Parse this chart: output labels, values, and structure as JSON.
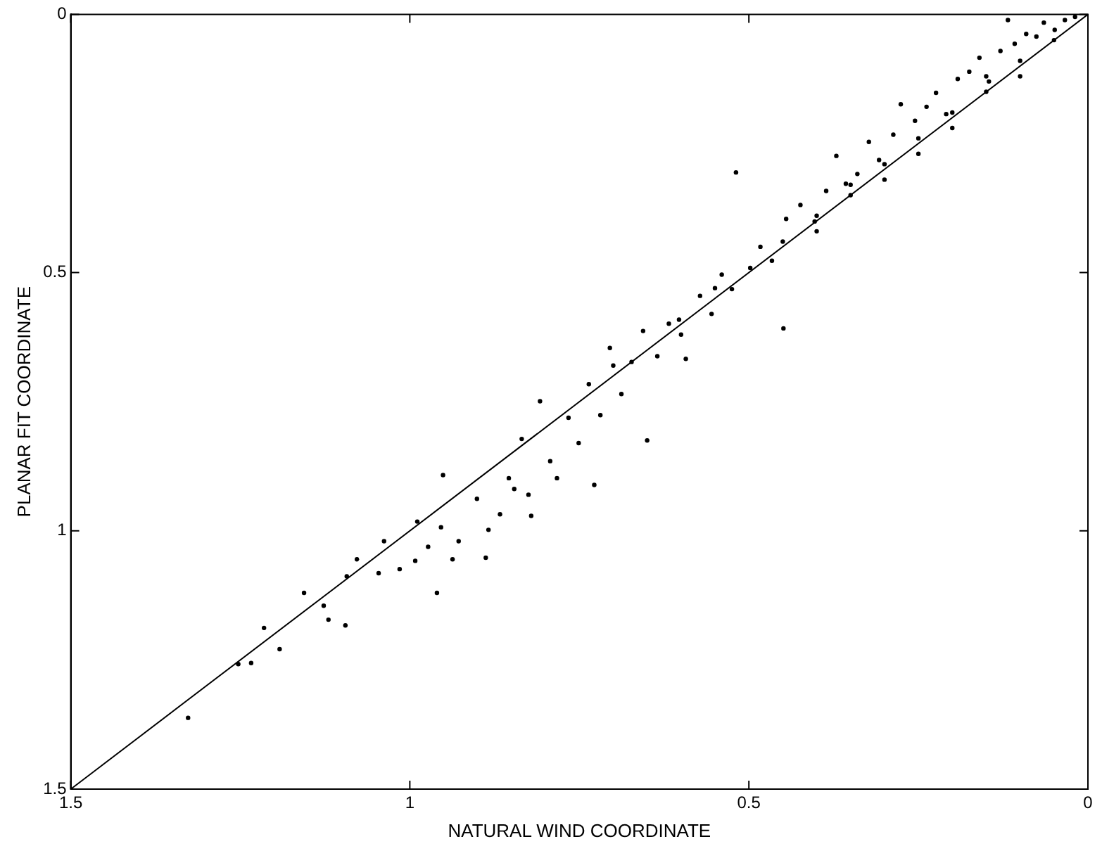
{
  "chart_data": {
    "type": "scatter",
    "xlabel": "NATURAL WIND COORDINATE",
    "ylabel": "PLANAR FIT COORDINATE",
    "xlim": [
      1.5,
      0
    ],
    "ylim": [
      1.5,
      0
    ],
    "xticks": [
      1.5,
      1,
      0.5,
      0
    ],
    "yticks": [
      0,
      0.5,
      1,
      1.5
    ],
    "grid": false,
    "legend": false,
    "series": [
      {
        "type": "line",
        "color": "#000000",
        "marker": "none",
        "line_style": "solid",
        "x": [
          1.5,
          0
        ],
        "values": [
          1.5,
          0
        ]
      },
      {
        "color": "#000000",
        "marker": "circle",
        "x": [
          1.327,
          1.253,
          1.234,
          1.215,
          1.192,
          1.156,
          1.127,
          1.12,
          1.095,
          1.093,
          1.078,
          1.046,
          1.038,
          1.015,
          0.992,
          0.989,
          0.973,
          0.96,
          0.954,
          0.951,
          0.937,
          0.928,
          0.901,
          0.888,
          0.884,
          0.867,
          0.854,
          0.846,
          0.835,
          0.825,
          0.821,
          0.808,
          0.793,
          0.783,
          0.766,
          0.751,
          0.736,
          0.728,
          0.719,
          0.705,
          0.688,
          0.673,
          0.656,
          0.65,
          0.635,
          0.618,
          0.603,
          0.593,
          0.572,
          0.555,
          0.54,
          0.525,
          0.519,
          0.498,
          0.483,
          0.466,
          0.449,
          0.445,
          0.424,
          0.403,
          0.386,
          0.371,
          0.357,
          0.34,
          0.323,
          0.308,
          0.287,
          0.276,
          0.255,
          0.238,
          0.224,
          0.209,
          0.192,
          0.175,
          0.16,
          0.146,
          0.129,
          0.118,
          0.108,
          0.091,
          0.076,
          0.065,
          0.049,
          0.034,
          0.019,
          0.45,
          0.4,
          0.35,
          0.3,
          0.25,
          0.2,
          0.15,
          0.1,
          0.05,
          0.3,
          0.2,
          0.15,
          0.1,
          0.25,
          0.35,
          0.4,
          0.55,
          0.6,
          0.7
        ],
        "values": [
          1.362,
          1.258,
          1.256,
          1.188,
          1.229,
          1.12,
          1.145,
          1.172,
          1.183,
          1.088,
          1.055,
          1.082,
          1.02,
          1.074,
          1.058,
          0.982,
          1.031,
          1.12,
          0.993,
          0.892,
          1.055,
          1.02,
          0.938,
          1.052,
          0.998,
          0.968,
          0.898,
          0.919,
          0.822,
          0.93,
          0.971,
          0.749,
          0.865,
          0.898,
          0.781,
          0.83,
          0.716,
          0.911,
          0.776,
          0.646,
          0.735,
          0.673,
          0.613,
          0.825,
          0.662,
          0.599,
          0.591,
          0.667,
          0.545,
          0.58,
          0.504,
          0.532,
          0.306,
          0.491,
          0.45,
          0.477,
          0.608,
          0.396,
          0.369,
          0.401,
          0.342,
          0.274,
          0.328,
          0.309,
          0.247,
          0.282,
          0.233,
          0.174,
          0.206,
          0.179,
          0.152,
          0.193,
          0.125,
          0.111,
          0.084,
          0.13,
          0.071,
          0.011,
          0.057,
          0.038,
          0.043,
          0.016,
          0.03,
          0.011,
          0.005,
          0.44,
          0.39,
          0.35,
          0.29,
          0.24,
          0.19,
          0.15,
          0.09,
          0.05,
          0.32,
          0.22,
          0.12,
          0.12,
          0.27,
          0.33,
          0.42,
          0.53,
          0.62,
          0.68
        ]
      }
    ]
  }
}
